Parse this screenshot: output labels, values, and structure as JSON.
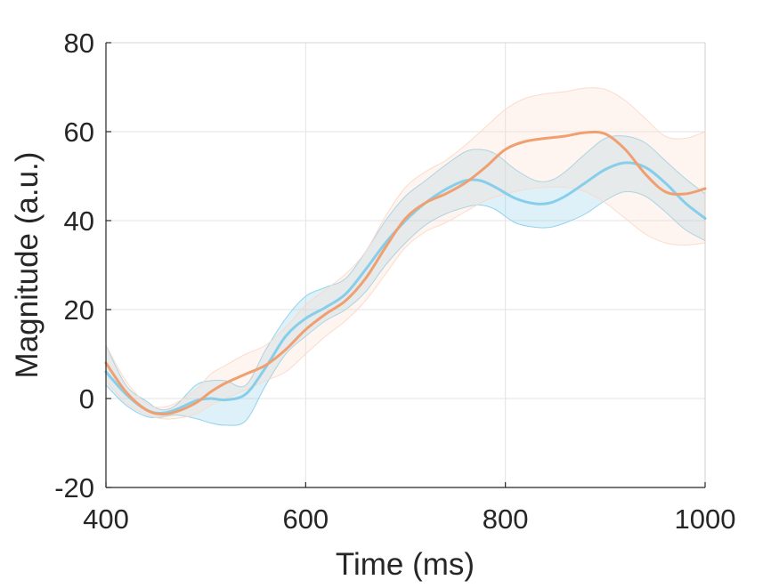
{
  "chart_data": {
    "type": "line",
    "xlabel": "Time (ms)",
    "ylabel": "Magnitude (a.u.)",
    "xlim": [
      400,
      1000
    ],
    "ylim": [
      -20,
      80
    ],
    "x_ticks": [
      "400",
      "600",
      "800",
      "1000"
    ],
    "y_ticks": [
      "-20",
      "0",
      "20",
      "40",
      "60",
      "80"
    ],
    "grid": true,
    "legend": "none",
    "series": [
      {
        "color": "#87CEEB",
        "band_color": "#87CEEB",
        "x": [
          400,
          420,
          440,
          455,
          470,
          490,
          505,
          520,
          540,
          560,
          580,
          600,
          620,
          640,
          660,
          680,
          700,
          720,
          740,
          760,
          775,
          790,
          810,
          830,
          845,
          860,
          880,
          900,
          920,
          940,
          960,
          980,
          1000
        ],
        "y": [
          6,
          1,
          -2.5,
          -3.3,
          -2.5,
          -0.5,
          0,
          -0.3,
          1,
          7,
          14,
          18,
          20.5,
          23.5,
          29,
          35,
          40,
          44,
          47,
          49,
          49,
          47.5,
          45,
          43.8,
          44,
          45.5,
          48.5,
          51.5,
          53,
          52,
          48.5,
          44,
          40.5
        ],
        "lower": [
          3,
          -1.5,
          -4,
          -4.2,
          -3.7,
          -4.5,
          -5.5,
          -6,
          -5,
          3,
          10,
          14,
          17.5,
          20,
          24,
          30,
          35,
          39,
          41.5,
          43,
          43.5,
          42.5,
          39.5,
          38.5,
          38.5,
          39.5,
          41.5,
          44.5,
          46.5,
          45.5,
          42,
          38,
          35.5
        ],
        "upper": [
          12,
          3,
          -0.5,
          -2.5,
          -1.5,
          3,
          4,
          4,
          3,
          11,
          18,
          23,
          25,
          27,
          33,
          40,
          45.5,
          49,
          52.5,
          55.5,
          56,
          55,
          51.5,
          49,
          49,
          51,
          55,
          58.5,
          59,
          57.5,
          53.5,
          49.5,
          46
        ]
      },
      {
        "color": "#F0A070",
        "band_color": "#FAD9C8",
        "x": [
          400,
          420,
          440,
          455,
          470,
          490,
          505,
          520,
          540,
          560,
          580,
          600,
          620,
          640,
          660,
          680,
          700,
          720,
          740,
          760,
          780,
          800,
          820,
          840,
          860,
          880,
          900,
          920,
          940,
          960,
          980,
          1000
        ],
        "y": [
          8,
          1.5,
          -2.5,
          -3.5,
          -3,
          -1,
          1.5,
          3.5,
          5.5,
          7.5,
          11,
          15.5,
          19,
          22,
          27,
          34,
          40.5,
          44,
          46,
          48.5,
          52,
          56,
          57.8,
          58.5,
          59,
          59.8,
          59.5,
          56,
          50.5,
          46.5,
          46,
          47.2
        ],
        "lower": [
          4,
          -1,
          -3.5,
          -4.5,
          -4.5,
          -3.5,
          -1.5,
          0,
          2,
          4,
          6,
          10,
          14,
          17.5,
          22,
          28,
          34,
          37.5,
          39.5,
          42,
          44.5,
          46,
          47,
          47.5,
          47.5,
          46.5,
          44,
          40.5,
          37,
          35,
          34.5,
          35
        ],
        "upper": [
          12,
          4,
          -1,
          -2,
          -1,
          2,
          5.5,
          7.5,
          10,
          12,
          16,
          21,
          24.5,
          28,
          33,
          41,
          47.5,
          51,
          53.5,
          57,
          61,
          65,
          67.5,
          68.5,
          69,
          69.8,
          69.5,
          67,
          63,
          59,
          58.5,
          60
        ]
      }
    ]
  }
}
